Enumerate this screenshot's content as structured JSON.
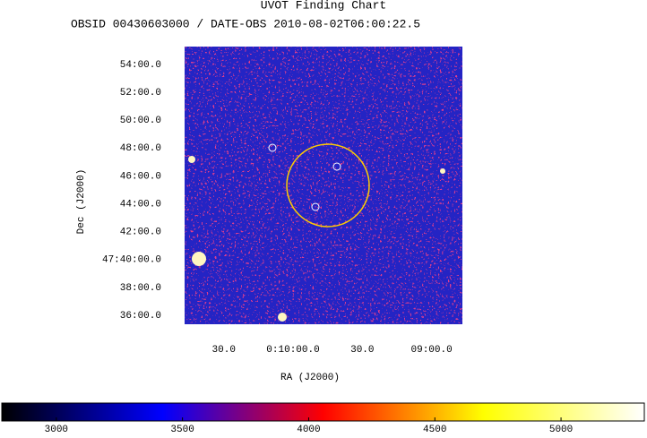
{
  "chart_data": {
    "type": "image",
    "title": "UVOT Finding Chart",
    "subtitle": "OBSID 00430603000 / DATE-OBS 2010-08-02T06:00:22.5",
    "x_label": "RA (J2000)",
    "y_label": "Dec (J2000)",
    "xlim": [
      2.6957,
      2.1944
    ],
    "xticks": [
      {
        "value": 2.625,
        "label": "30.0"
      },
      {
        "value": 2.5,
        "label": "0:10:00.0"
      },
      {
        "value": 2.375,
        "label": "30.0"
      },
      {
        "value": 2.25,
        "label": "09:00.0"
      }
    ],
    "ylim": [
      47.5893,
      47.9214
    ],
    "yticks": [
      {
        "value": 47.9,
        "label": "54:00.0"
      },
      {
        "value": 47.8667,
        "label": "52:00.0"
      },
      {
        "value": 47.8333,
        "label": "50:00.0"
      },
      {
        "value": 47.8,
        "label": "48:00.0"
      },
      {
        "value": 47.7667,
        "label": "46:00.0"
      },
      {
        "value": 47.7333,
        "label": "44:00.0"
      },
      {
        "value": 47.7,
        "label": "42:00.0"
      },
      {
        "value": 47.6667,
        "label": "47:40:00.0"
      },
      {
        "value": 47.6333,
        "label": "38:00.0"
      },
      {
        "value": 47.6,
        "label": "36:00.0"
      }
    ],
    "colormap": [
      "#000000",
      "#0000ff",
      "#ff0000",
      "#ffff00",
      "#ffffff"
    ],
    "clim": [
      2784,
      5330
    ],
    "cticks": [
      3000,
      3500,
      4000,
      4500,
      5000
    ]
  }
}
